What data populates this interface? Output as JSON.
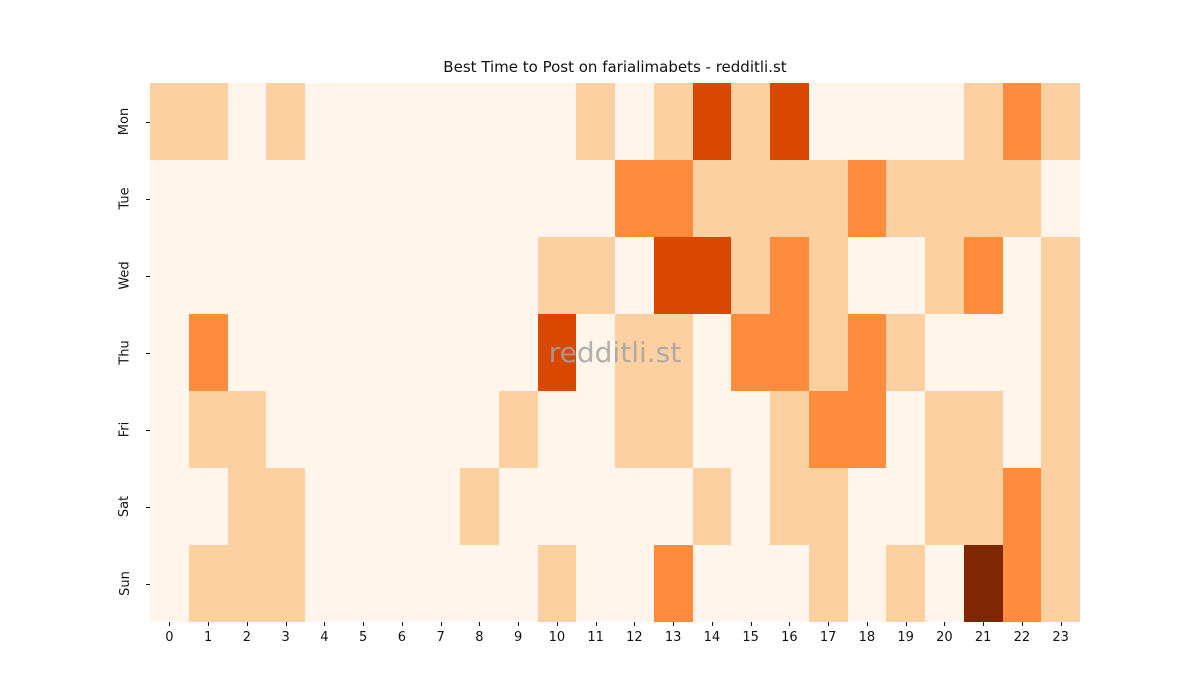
{
  "title": "Best Time to Post on farialimabets - redditli.st",
  "watermark": "redditli.st",
  "colors": {
    "figure_background": "#ffffff",
    "tick_text": "#141414",
    "title_text": "#111111",
    "watermark_text": "#a3a3a3"
  },
  "chart_data": {
    "type": "heatmap",
    "title": "Best Time to Post on farialimabets - redditli.st",
    "xlabel": "",
    "ylabel": "",
    "x_labels": [
      "0",
      "1",
      "2",
      "3",
      "4",
      "5",
      "6",
      "7",
      "8",
      "9",
      "10",
      "11",
      "12",
      "13",
      "14",
      "15",
      "16",
      "17",
      "18",
      "19",
      "20",
      "21",
      "22",
      "23"
    ],
    "y_labels": [
      "Mon",
      "Tue",
      "Wed",
      "Thu",
      "Fri",
      "Sat",
      "Sun"
    ],
    "values": [
      [
        1,
        1,
        0,
        1,
        0,
        0,
        0,
        0,
        0,
        0,
        0,
        1,
        0,
        1,
        3,
        1,
        3,
        0,
        0,
        0,
        0,
        1,
        2,
        1
      ],
      [
        0,
        0,
        0,
        0,
        0,
        0,
        0,
        0,
        0,
        0,
        0,
        0,
        2,
        2,
        1,
        1,
        1,
        1,
        2,
        1,
        1,
        1,
        1,
        0
      ],
      [
        0,
        0,
        0,
        0,
        0,
        0,
        0,
        0,
        0,
        0,
        1,
        1,
        0,
        3,
        3,
        1,
        2,
        1,
        0,
        0,
        1,
        2,
        0,
        1
      ],
      [
        0,
        2,
        0,
        0,
        0,
        0,
        0,
        0,
        0,
        0,
        3,
        0,
        1,
        1,
        0,
        2,
        2,
        1,
        2,
        1,
        0,
        0,
        0,
        1
      ],
      [
        0,
        1,
        1,
        0,
        0,
        0,
        0,
        0,
        0,
        1,
        0,
        0,
        1,
        1,
        0,
        0,
        1,
        2,
        2,
        0,
        1,
        1,
        0,
        1
      ],
      [
        0,
        0,
        1,
        1,
        0,
        0,
        0,
        0,
        1,
        0,
        0,
        0,
        0,
        0,
        1,
        0,
        1,
        1,
        0,
        0,
        1,
        1,
        2,
        1
      ],
      [
        0,
        1,
        1,
        1,
        0,
        0,
        0,
        0,
        0,
        0,
        1,
        0,
        0,
        2,
        0,
        0,
        0,
        1,
        0,
        1,
        0,
        4,
        2,
        1
      ]
    ],
    "value_range": [
      0,
      4
    ],
    "colormap": "Oranges",
    "palette": {
      "0": "#fff5eb",
      "1": "#fdd0a2",
      "2": "#fd8d3c",
      "3": "#d94801",
      "4": "#7f2704"
    },
    "grid": false,
    "legend": "none",
    "colorbar": "none"
  }
}
